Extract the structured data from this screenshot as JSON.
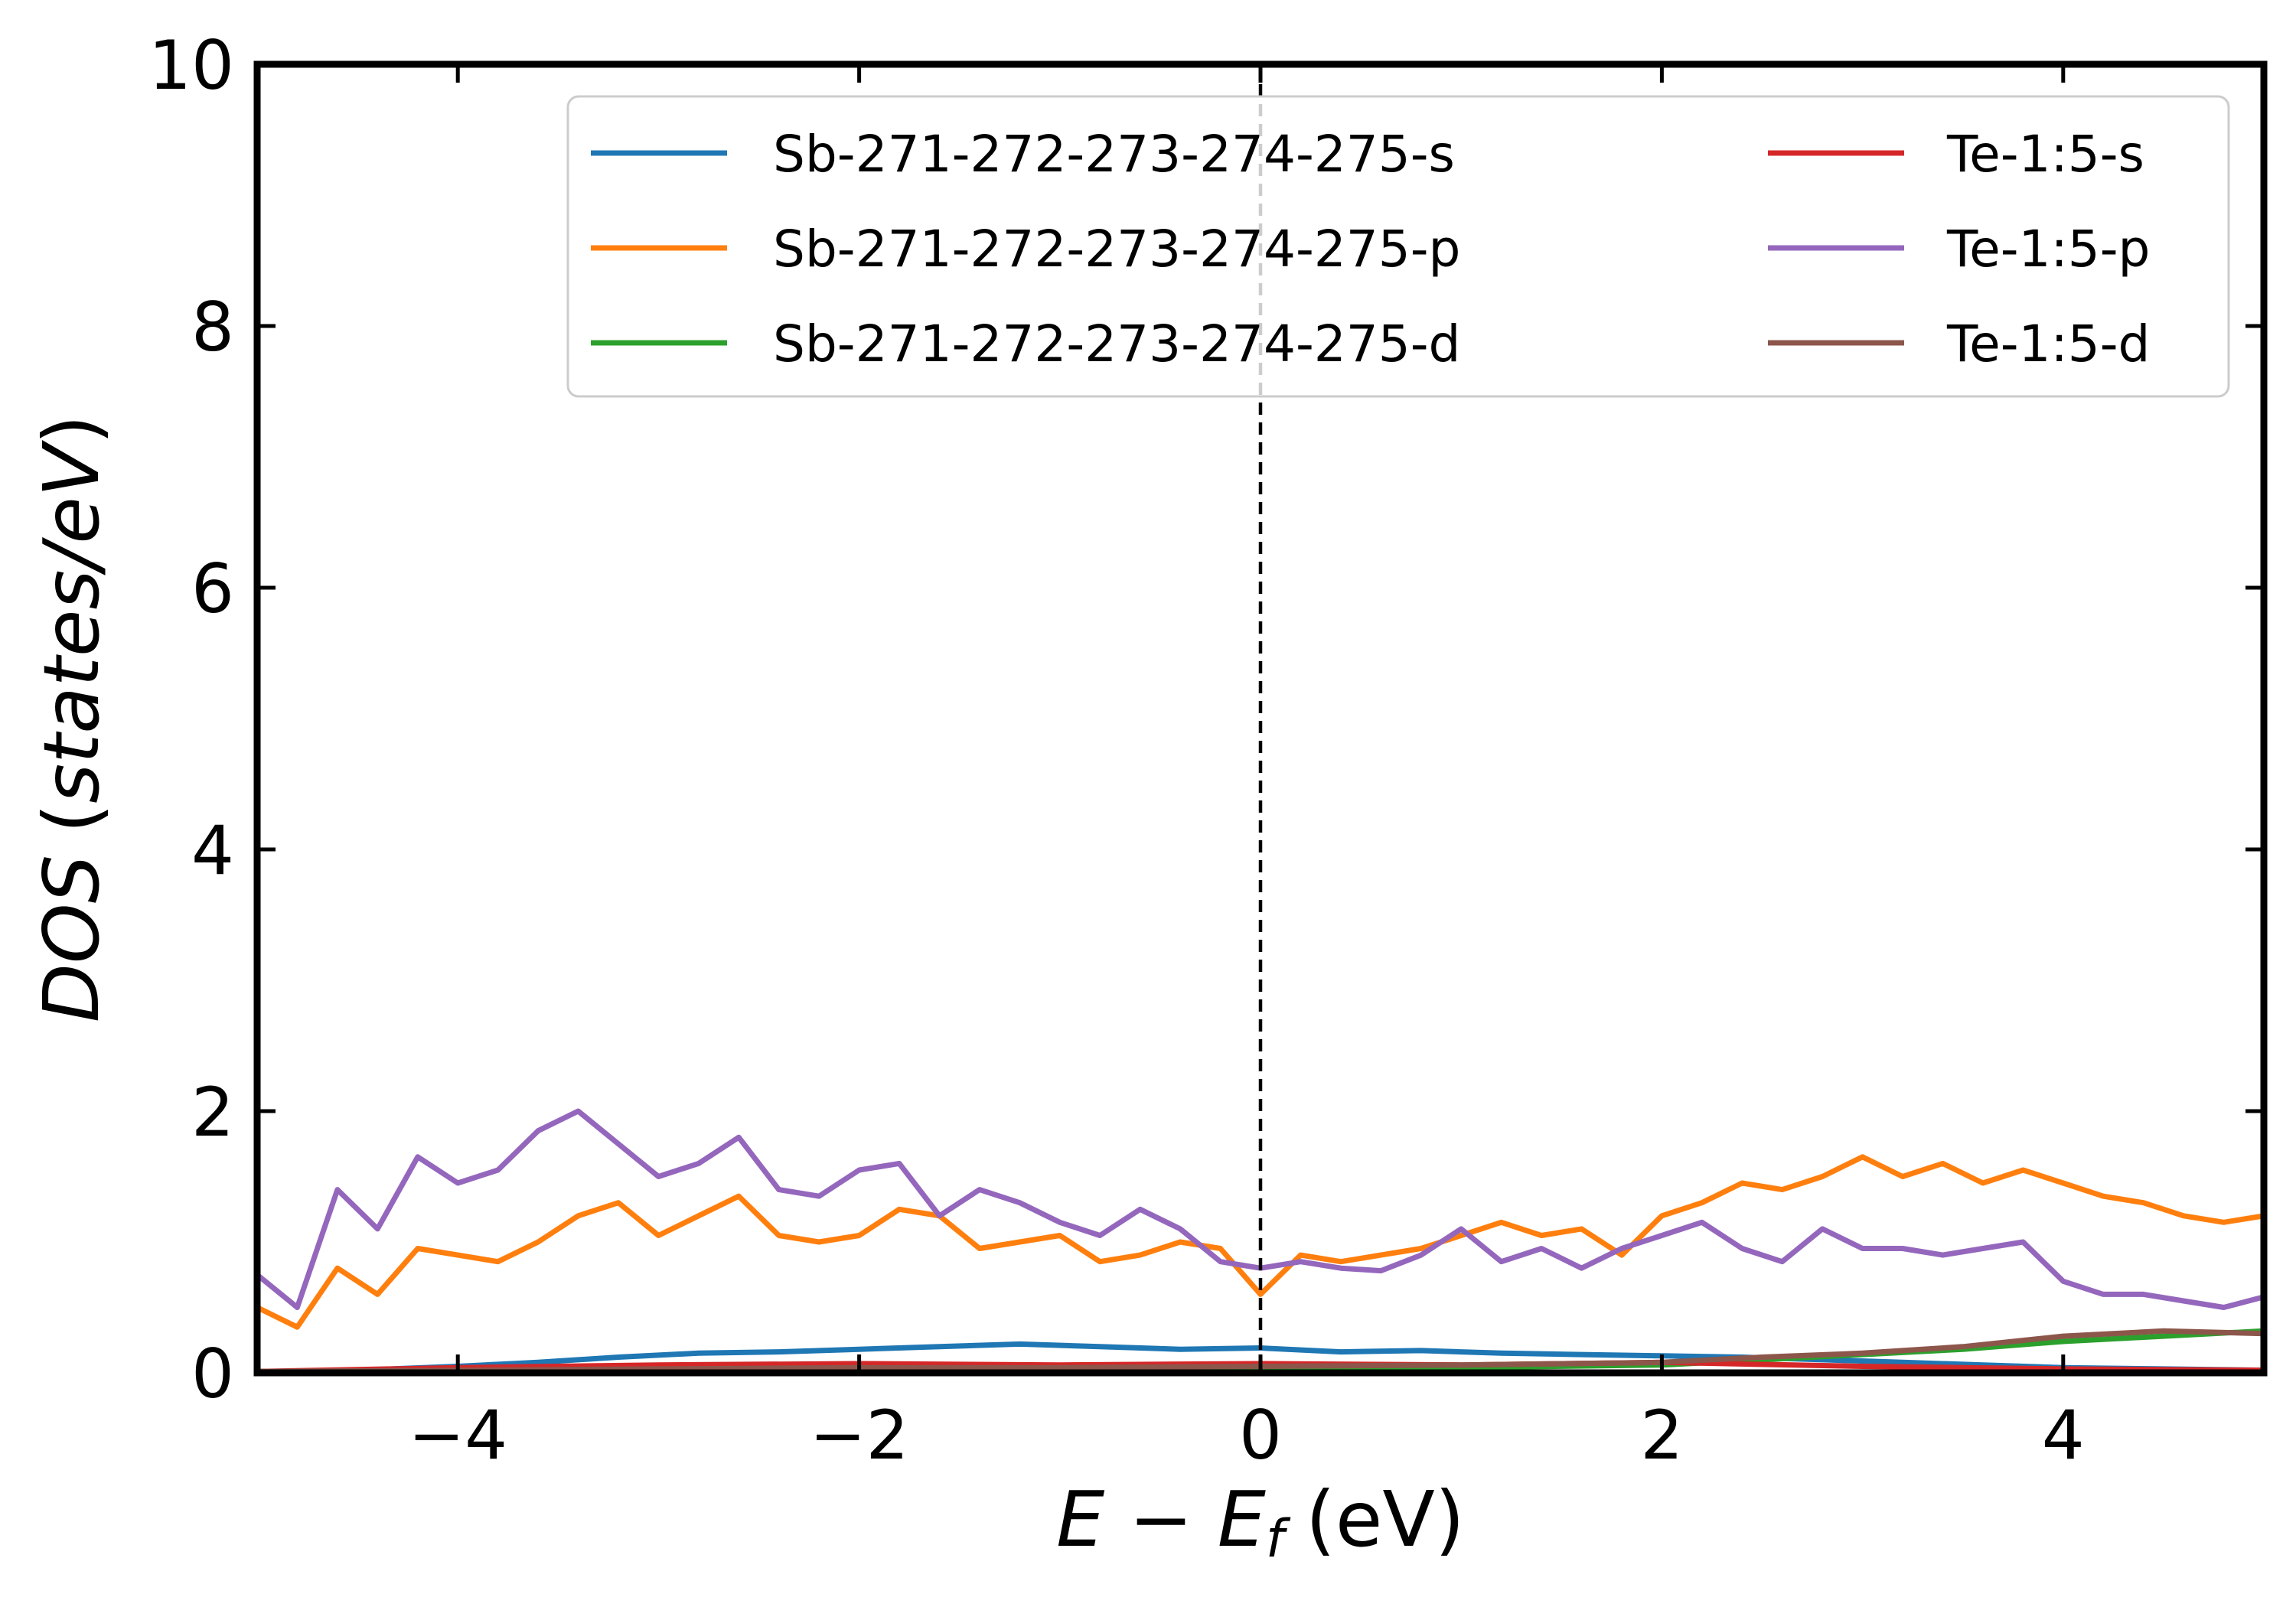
{
  "chart_data": {
    "type": "line",
    "xlabel": {
      "italic_part": "E − E",
      "subscript": "f",
      "unit": "(eV)"
    },
    "ylabel": {
      "italic_part": "DOS",
      "unit_prefix": "(",
      "unit_italic": "states/eV",
      "unit_suffix": ")"
    },
    "xlim": [
      -5,
      5
    ],
    "ylim": [
      0,
      10
    ],
    "xticks": [
      -4,
      -2,
      0,
      2,
      4
    ],
    "xtick_labels": [
      "−4",
      "−2",
      "0",
      "2",
      "4"
    ],
    "yticks": [
      0,
      2,
      4,
      6,
      8,
      10
    ],
    "ytick_labels": [
      "0",
      "2",
      "4",
      "6",
      "8",
      "10"
    ],
    "fermi_line_x": 0,
    "grid": false,
    "legend_placement": "top-right",
    "legend_columns": 2,
    "series": [
      {
        "name": "Sb-271-272-273-274-275-s",
        "color": "#1f77b4",
        "x": [
          -5,
          -4.5,
          -4,
          -3.6,
          -3.2,
          -2.8,
          -2.4,
          -2,
          -1.6,
          -1.2,
          -0.8,
          -0.4,
          0,
          0.4,
          0.8,
          1.2,
          1.6,
          2,
          2.4,
          2.8,
          3.2,
          3.6,
          4,
          4.5,
          5
        ],
        "values": [
          0.01,
          0.02,
          0.05,
          0.08,
          0.12,
          0.15,
          0.16,
          0.18,
          0.2,
          0.22,
          0.2,
          0.18,
          0.19,
          0.16,
          0.17,
          0.15,
          0.14,
          0.13,
          0.12,
          0.1,
          0.08,
          0.06,
          0.04,
          0.03,
          0.02
        ]
      },
      {
        "name": "Sb-271-272-273-274-275-p",
        "color": "#ff7f0e",
        "x": [
          -5,
          -4.8,
          -4.6,
          -4.4,
          -4.2,
          -4,
          -3.8,
          -3.6,
          -3.4,
          -3.2,
          -3,
          -2.8,
          -2.6,
          -2.4,
          -2.2,
          -2,
          -1.8,
          -1.6,
          -1.4,
          -1.2,
          -1,
          -0.8,
          -0.6,
          -0.4,
          -0.2,
          0,
          0.2,
          0.4,
          0.6,
          0.8,
          1,
          1.2,
          1.4,
          1.6,
          1.8,
          2,
          2.2,
          2.4,
          2.6,
          2.8,
          3,
          3.2,
          3.4,
          3.6,
          3.8,
          4,
          4.2,
          4.4,
          4.6,
          4.8,
          5
        ],
        "values": [
          0.5,
          0.35,
          0.8,
          0.6,
          0.95,
          0.9,
          0.85,
          1.0,
          1.2,
          1.3,
          1.05,
          1.2,
          1.35,
          1.05,
          1.0,
          1.05,
          1.25,
          1.2,
          0.95,
          1.0,
          1.05,
          0.85,
          0.9,
          1.0,
          0.95,
          0.6,
          0.9,
          0.85,
          0.9,
          0.95,
          1.05,
          1.15,
          1.05,
          1.1,
          0.9,
          1.2,
          1.3,
          1.45,
          1.4,
          1.5,
          1.65,
          1.5,
          1.6,
          1.45,
          1.55,
          1.45,
          1.35,
          1.3,
          1.2,
          1.15,
          1.2
        ]
      },
      {
        "name": "Sb-271-272-273-274-275-d",
        "color": "#2ca02c",
        "x": [
          -5,
          -4,
          -3,
          -2,
          -1,
          0,
          1,
          2,
          2.5,
          3,
          3.5,
          4,
          4.5,
          5
        ],
        "values": [
          0.01,
          0.02,
          0.02,
          0.03,
          0.03,
          0.03,
          0.04,
          0.06,
          0.1,
          0.14,
          0.18,
          0.24,
          0.28,
          0.32
        ]
      },
      {
        "name": "Te-1:5-s",
        "color": "#d62728",
        "x": [
          -5,
          -4,
          -3,
          -2,
          -1,
          0,
          1,
          2,
          3,
          4,
          5
        ],
        "values": [
          0.01,
          0.04,
          0.06,
          0.07,
          0.06,
          0.07,
          0.06,
          0.08,
          0.05,
          0.03,
          0.02
        ]
      },
      {
        "name": "Te-1:5-p",
        "color": "#9467bd",
        "x": [
          -5,
          -4.8,
          -4.6,
          -4.4,
          -4.2,
          -4,
          -3.8,
          -3.6,
          -3.4,
          -3.2,
          -3,
          -2.8,
          -2.6,
          -2.4,
          -2.2,
          -2,
          -1.8,
          -1.6,
          -1.4,
          -1.2,
          -1,
          -0.8,
          -0.6,
          -0.4,
          -0.2,
          0,
          0.2,
          0.4,
          0.6,
          0.8,
          1,
          1.2,
          1.4,
          1.6,
          1.8,
          2,
          2.2,
          2.4,
          2.6,
          2.8,
          3,
          3.2,
          3.4,
          3.6,
          3.8,
          4,
          4.2,
          4.4,
          4.6,
          4.8,
          5
        ],
        "values": [
          0.75,
          0.5,
          1.4,
          1.1,
          1.65,
          1.45,
          1.55,
          1.85,
          2.0,
          1.75,
          1.5,
          1.6,
          1.8,
          1.4,
          1.35,
          1.55,
          1.6,
          1.2,
          1.4,
          1.3,
          1.15,
          1.05,
          1.25,
          1.1,
          0.85,
          0.8,
          0.85,
          0.8,
          0.78,
          0.9,
          1.1,
          0.85,
          0.95,
          0.8,
          0.95,
          1.05,
          1.15,
          0.95,
          0.85,
          1.1,
          0.95,
          0.95,
          0.9,
          0.95,
          1.0,
          0.7,
          0.6,
          0.6,
          0.55,
          0.5,
          0.58
        ]
      },
      {
        "name": "Te-1:5-d",
        "color": "#8c564b",
        "x": [
          -5,
          -4,
          -3,
          -2,
          -1,
          0,
          1,
          2,
          2.5,
          3,
          3.5,
          4,
          4.5,
          5
        ],
        "values": [
          0.01,
          0.02,
          0.03,
          0.04,
          0.04,
          0.05,
          0.06,
          0.08,
          0.12,
          0.15,
          0.2,
          0.28,
          0.32,
          0.3
        ]
      }
    ]
  }
}
